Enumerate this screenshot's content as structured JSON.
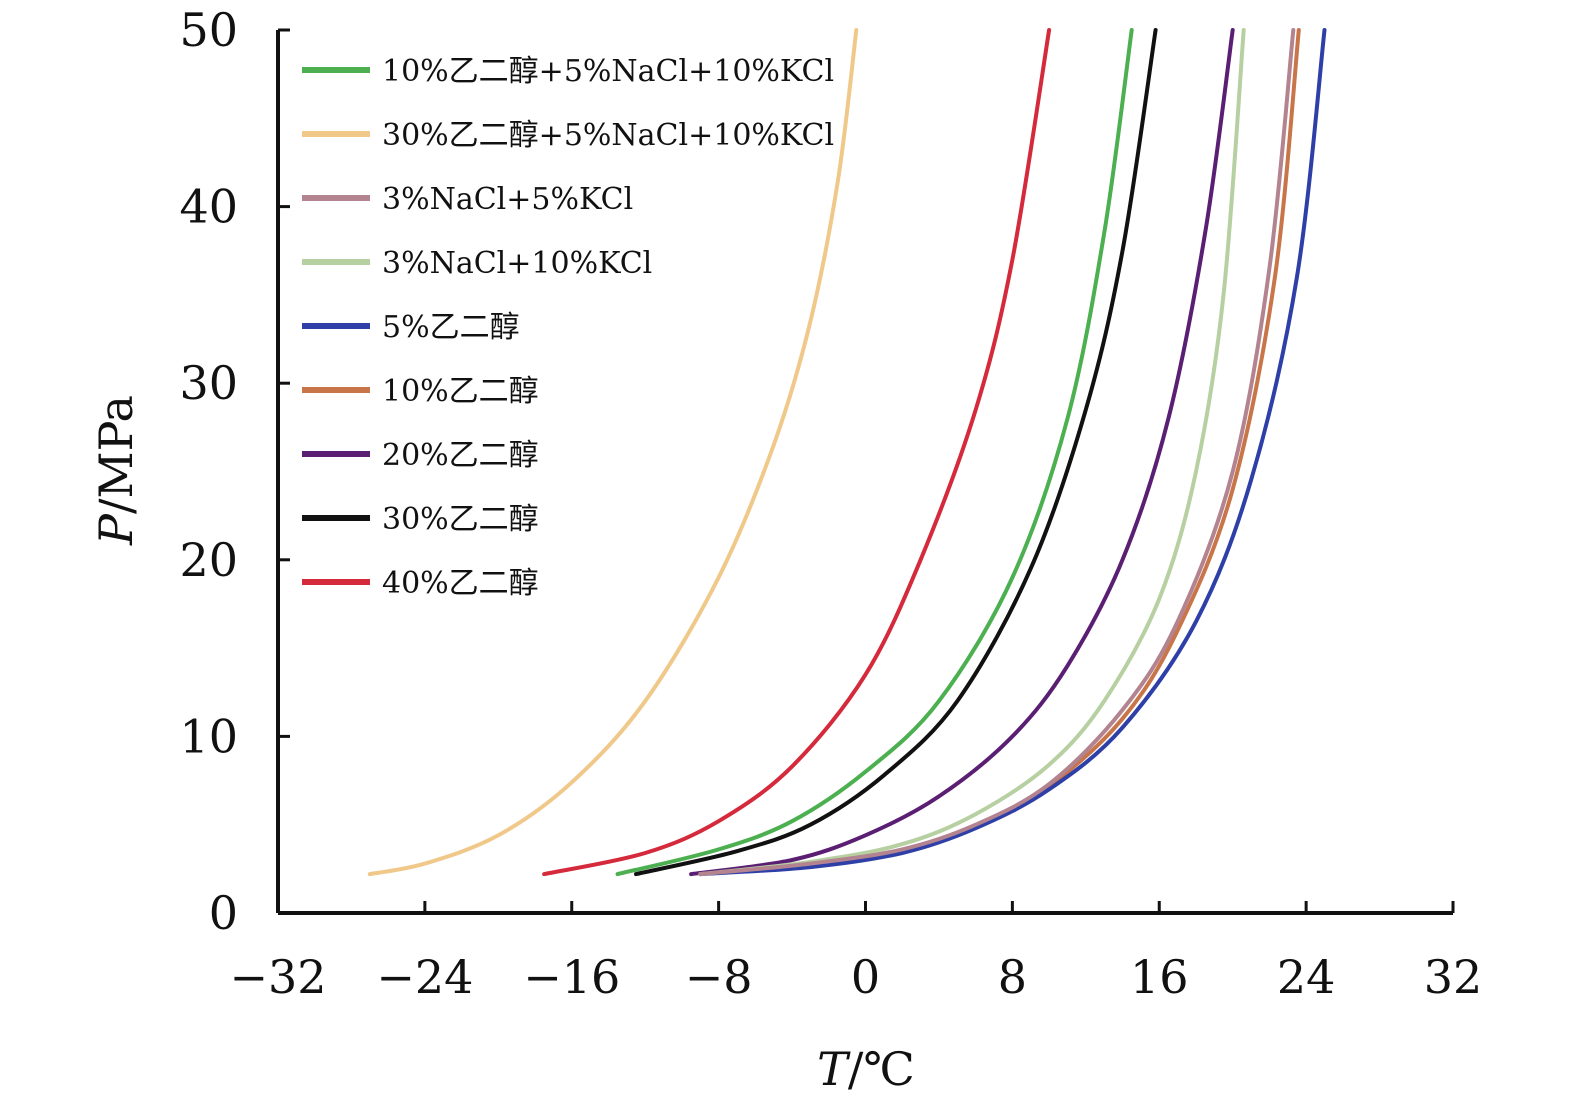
{
  "chart_data": {
    "type": "line",
    "title": "",
    "xlabel_italic": "T",
    "xlabel_rest": "/℃",
    "ylabel_italic": "P",
    "ylabel_rest": "/MPa",
    "xlim": [
      -32,
      32
    ],
    "ylim": [
      0,
      50
    ],
    "x_ticks": [
      -32,
      -24,
      -16,
      -8,
      0,
      8,
      16,
      24,
      32
    ],
    "x_tick_labels": [
      "−32",
      "−24",
      "−16",
      "−8",
      "0",
      "8",
      "16",
      "24",
      "32"
    ],
    "y_ticks": [
      0,
      10,
      20,
      30,
      40,
      50
    ],
    "y_tick_labels": [
      "0",
      "10",
      "20",
      "30",
      "40",
      "50"
    ],
    "grid": false,
    "legend_position": "top-left",
    "series": [
      {
        "name": "10%乙二醇+5%NaCl+10%KCl",
        "color": "#4caf50",
        "x": [
          -13.5,
          -8,
          -4,
          0,
          4,
          8,
          11,
          13,
          14.5
        ],
        "y": [
          2.2,
          3.6,
          5.2,
          8.0,
          12.0,
          19.0,
          28.0,
          38.5,
          50
        ]
      },
      {
        "name": "30%乙二醇+5%NaCl+10%KCl",
        "color": "#f0c98a",
        "x": [
          -27,
          -24,
          -20,
          -16,
          -12,
          -8,
          -5,
          -3,
          -1.5,
          -0.5
        ],
        "y": [
          2.2,
          2.8,
          4.4,
          7.4,
          12.0,
          19.0,
          26.5,
          33.5,
          41.5,
          50
        ]
      },
      {
        "name": "3%NaCl+5%KCl",
        "color": "#b38390",
        "x": [
          -9,
          -3,
          2,
          6,
          10,
          14,
          17,
          20,
          22,
          23.3
        ],
        "y": [
          2.2,
          2.8,
          3.6,
          5.0,
          7.3,
          11.5,
          16.5,
          25.0,
          36.5,
          50
        ]
      },
      {
        "name": "3%NaCl+10%KCl",
        "color": "#b7d0a2",
        "x": [
          -9,
          -3,
          2,
          6,
          10,
          13,
          16,
          18,
          19.5,
          20.6
        ],
        "y": [
          2.2,
          2.9,
          3.9,
          5.6,
          8.4,
          12.0,
          17.8,
          25.0,
          35.0,
          50
        ]
      },
      {
        "name": "5%乙二醇",
        "color": "#2e3fa8",
        "x": [
          -9,
          -3,
          2,
          6,
          10,
          14,
          18,
          21,
          23.5,
          25
        ],
        "y": [
          2.2,
          2.6,
          3.4,
          4.8,
          7.0,
          10.5,
          16.5,
          24.5,
          36.0,
          50
        ]
      },
      {
        "name": "10%乙二醇",
        "color": "#c8754a",
        "x": [
          -9,
          -3,
          2,
          6,
          10,
          14,
          17,
          20,
          22.3,
          23.6
        ],
        "y": [
          2.2,
          2.7,
          3.5,
          4.9,
          7.2,
          11.0,
          16.0,
          24.0,
          36.0,
          50
        ]
      },
      {
        "name": "20%乙二醇",
        "color": "#5a1f73",
        "x": [
          -9.5,
          -4,
          0,
          4,
          8,
          11,
          14,
          16.5,
          18.5,
          20
        ],
        "y": [
          2.2,
          3.0,
          4.4,
          6.6,
          10.0,
          14.0,
          20.0,
          28.0,
          38.5,
          50
        ]
      },
      {
        "name": "30%乙二醇",
        "color": "#111111",
        "x": [
          -12.5,
          -7,
          -3,
          1,
          5,
          9,
          12,
          14,
          15.8
        ],
        "y": [
          2.2,
          3.5,
          5.0,
          7.8,
          12.0,
          19.5,
          28.5,
          37.5,
          50
        ]
      },
      {
        "name": "40%乙二醇",
        "color": "#d42a3c",
        "x": [
          -17.5,
          -12,
          -8,
          -4,
          0,
          3,
          6,
          8,
          10
        ],
        "y": [
          2.2,
          3.4,
          5.2,
          8.3,
          13.5,
          20.0,
          28.5,
          37.0,
          50
        ]
      }
    ]
  }
}
